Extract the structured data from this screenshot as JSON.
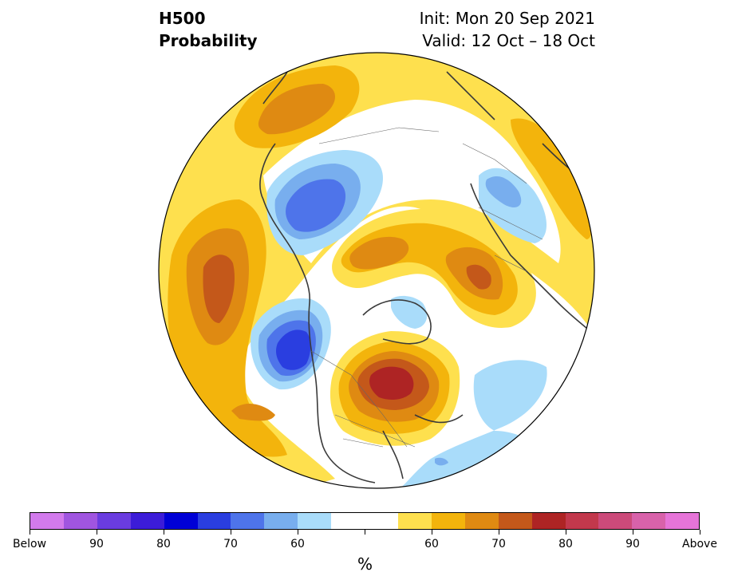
{
  "title": {
    "left_line1": "H500",
    "left_line2": "Probability",
    "right_line1": "Init: Mon 20 Sep 2021",
    "right_line2": "Valid: 12 Oct – 18 Oct"
  },
  "colorbar": {
    "colors": [
      "#d27aec",
      "#a055e0",
      "#6a3ce0",
      "#3c1cd8",
      "#0000d6",
      "#2a3ee0",
      "#4e74ea",
      "#78aeee",
      "#a9dcfa",
      "#ffffff",
      "#ffffff",
      "#fee04e",
      "#f3b40c",
      "#df8a12",
      "#c4581a",
      "#ae2424",
      "#c2384c",
      "#cc4a7a",
      "#d862aa",
      "#e674d8"
    ],
    "labels": [
      {
        "text": "Below",
        "idx": 0
      },
      {
        "text": "90",
        "idx": 2
      },
      {
        "text": "80",
        "idx": 4
      },
      {
        "text": "70",
        "idx": 6
      },
      {
        "text": "60",
        "idx": 8
      },
      {
        "text": "60",
        "idx": 12
      },
      {
        "text": "70",
        "idx": 14
      },
      {
        "text": "80",
        "idx": 16
      },
      {
        "text": "90",
        "idx": 18
      },
      {
        "text": "Above",
        "idx": 20
      }
    ],
    "unit": "%"
  },
  "map_regions": [
    {
      "name": "pacific-above-outer",
      "color": "#fee04e"
    },
    {
      "name": "pacific-above-core",
      "color": "#c4581a"
    },
    {
      "name": "great-lakes-above-core",
      "color": "#ae2424"
    },
    {
      "name": "west-coast-below-core",
      "color": "#2a3ee0"
    },
    {
      "name": "siberia-below",
      "color": "#4e74ea"
    },
    {
      "name": "europe-above",
      "color": "#c4581a"
    },
    {
      "name": "atlantic-below",
      "color": "#a9dcfa"
    }
  ]
}
